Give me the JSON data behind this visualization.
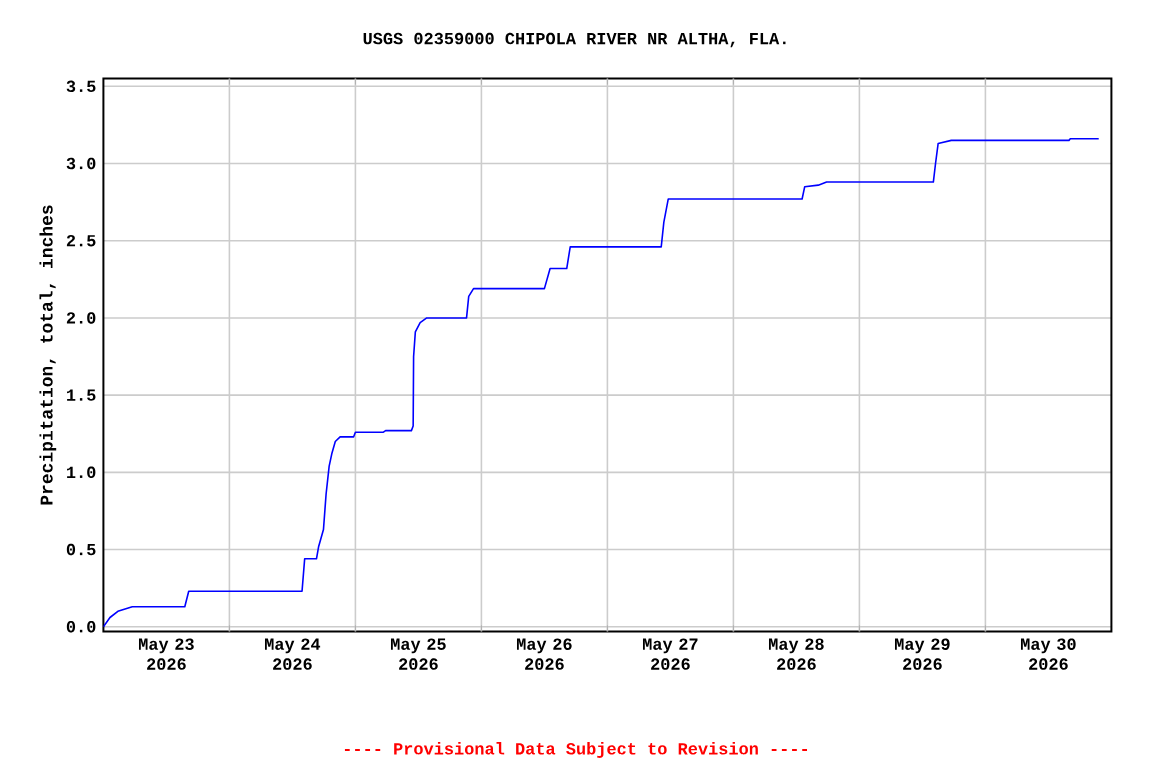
{
  "chart_data": {
    "type": "line",
    "title": "USGS 02359000 CHIPOLA RIVER NR ALTHA, FLA.",
    "ylabel": "Precipitation, total, inches",
    "annotations": [
      "---- Provisional Data Subject to Revision ----"
    ],
    "xlim": [
      "2026-05-23T00:00",
      "2026-05-31T00:00"
    ],
    "ylim": [
      -0.03,
      3.55
    ],
    "xticks": [
      {
        "value": "2026-05-23T12:00",
        "label": "May 23 2026"
      },
      {
        "value": "2026-05-24T12:00",
        "label": "May 24 2026"
      },
      {
        "value": "2026-05-25T12:00",
        "label": "May 25 2026"
      },
      {
        "value": "2026-05-26T12:00",
        "label": "May 26 2026"
      },
      {
        "value": "2026-05-27T12:00",
        "label": "May 27 2026"
      },
      {
        "value": "2026-05-28T12:00",
        "label": "May 28 2026"
      },
      {
        "value": "2026-05-29T12:00",
        "label": "May 29 2026"
      },
      {
        "value": "2026-05-30T12:00",
        "label": "May 30 2026"
      },
      {
        "value": "2026-05-24T00:00",
        "label": null
      },
      {
        "value": "2026-05-25T00:00",
        "label": null
      },
      {
        "value": "2026-05-26T00:00",
        "label": null
      },
      {
        "value": "2026-05-27T00:00",
        "label": null
      },
      {
        "value": "2026-05-28T00:00",
        "label": null
      },
      {
        "value": "2026-05-29T00:00",
        "label": null
      },
      {
        "value": "2026-05-30T00:00",
        "label": null
      }
    ],
    "yticks": [
      {
        "value": 0,
        "label": "0.0"
      },
      0.5,
      {
        "value": 1,
        "label": "1.0"
      },
      1.5,
      {
        "value": 2,
        "label": "2.0"
      },
      2.5,
      {
        "value": 3,
        "label": "3.0"
      },
      3.5
    ],
    "grid": true,
    "line_style": "solid",
    "series": [
      {
        "color": "#0000ff",
        "x": [
          "2026-05-23T00:00",
          "2026-05-23T01:15",
          "2026-05-23T02:45",
          "2026-05-23T05:30",
          "2026-05-23T15:30",
          "2026-05-23T16:15",
          "2026-05-24T13:50",
          "2026-05-24T14:20",
          "2026-05-24T16:35",
          "2026-05-24T17:00",
          "2026-05-24T17:55",
          "2026-05-24T18:25",
          "2026-05-24T19:00",
          "2026-05-24T19:30",
          "2026-05-24T20:10",
          "2026-05-24T21:05",
          "2026-05-24T23:40",
          "2026-05-25T00:00",
          "2026-05-25T05:20",
          "2026-05-25T05:45",
          "2026-05-25T10:40",
          "2026-05-25T11:00",
          "2026-05-25T11:05",
          "2026-05-25T11:25",
          "2026-05-25T12:20",
          "2026-05-25T13:35",
          "2026-05-25T21:10",
          "2026-05-25T21:35",
          "2026-05-25T22:30",
          "2026-05-26T12:00",
          "2026-05-26T13:05",
          "2026-05-26T16:15",
          "2026-05-26T16:55",
          "2026-05-27T10:15",
          "2026-05-27T10:45",
          "2026-05-27T11:35",
          "2026-05-28T13:05",
          "2026-05-28T13:35",
          "2026-05-28T16:10",
          "2026-05-28T17:45",
          "2026-05-29T14:05",
          "2026-05-29T14:30",
          "2026-05-29T15:00",
          "2026-05-29T17:30",
          "2026-05-30T15:55",
          "2026-05-30T16:10",
          "2026-05-30T21:35"
        ],
        "values": [
          0.0,
          0.06,
          0.1,
          0.13,
          0.13,
          0.23,
          0.23,
          0.44,
          0.44,
          0.52,
          0.63,
          0.86,
          1.04,
          1.12,
          1.2,
          1.23,
          1.23,
          1.26,
          1.26,
          1.27,
          1.27,
          1.3,
          1.75,
          1.91,
          1.97,
          2.0,
          2.0,
          2.14,
          2.19,
          2.19,
          2.32,
          2.32,
          2.46,
          2.46,
          2.62,
          2.77,
          2.77,
          2.85,
          2.86,
          2.88,
          2.88,
          3.0,
          3.13,
          3.15,
          3.15,
          3.16,
          3.16
        ]
      }
    ]
  }
}
